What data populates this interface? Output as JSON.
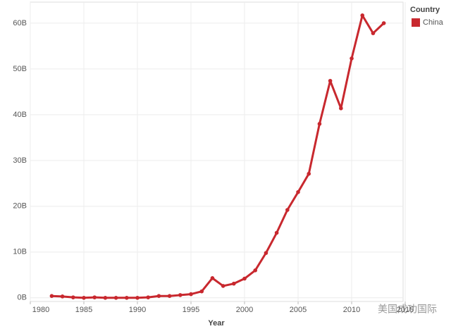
{
  "chart_data": {
    "type": "line",
    "x_label": "Year",
    "legend_title": "Country",
    "legend": "top-right",
    "grid": true,
    "x": [
      1982,
      1983,
      1984,
      1985,
      1986,
      1987,
      1988,
      1989,
      1990,
      1991,
      1992,
      1993,
      1994,
      1995,
      1996,
      1997,
      1998,
      1999,
      2000,
      2001,
      2002,
      2003,
      2004,
      2005,
      2006,
      2007,
      2008,
      2009,
      2010,
      2011,
      2012,
      2013
    ],
    "series": [
      {
        "name": "China",
        "color": "#c8282e",
        "values": [
          0.4,
          0.3,
          0.1,
          0.0,
          0.1,
          0.0,
          0.0,
          0.0,
          0.0,
          0.1,
          0.4,
          0.4,
          0.6,
          0.8,
          1.4,
          4.3,
          2.6,
          3.1,
          4.2,
          6.0,
          9.8,
          14.2,
          19.2,
          23.1,
          27.1,
          38.0,
          47.4,
          41.4,
          52.3,
          61.7,
          57.8,
          60.0
        ]
      }
    ],
    "xlim": [
      1980,
      2014.8
    ],
    "xticks": [
      1980,
      1985,
      1990,
      1995,
      2000,
      2005,
      2010,
      2015
    ],
    "ylim": [
      -0.8,
      64.6
    ],
    "yticks": [
      {
        "value": 0,
        "label": "0B"
      },
      {
        "value": 10,
        "label": "10B"
      },
      {
        "value": 20,
        "label": "20B"
      },
      {
        "value": 30,
        "label": "30B"
      },
      {
        "value": 40,
        "label": "40B"
      },
      {
        "value": 50,
        "label": "50B"
      },
      {
        "value": 60,
        "label": "60B"
      }
    ],
    "watermark": "美国成功国际"
  }
}
